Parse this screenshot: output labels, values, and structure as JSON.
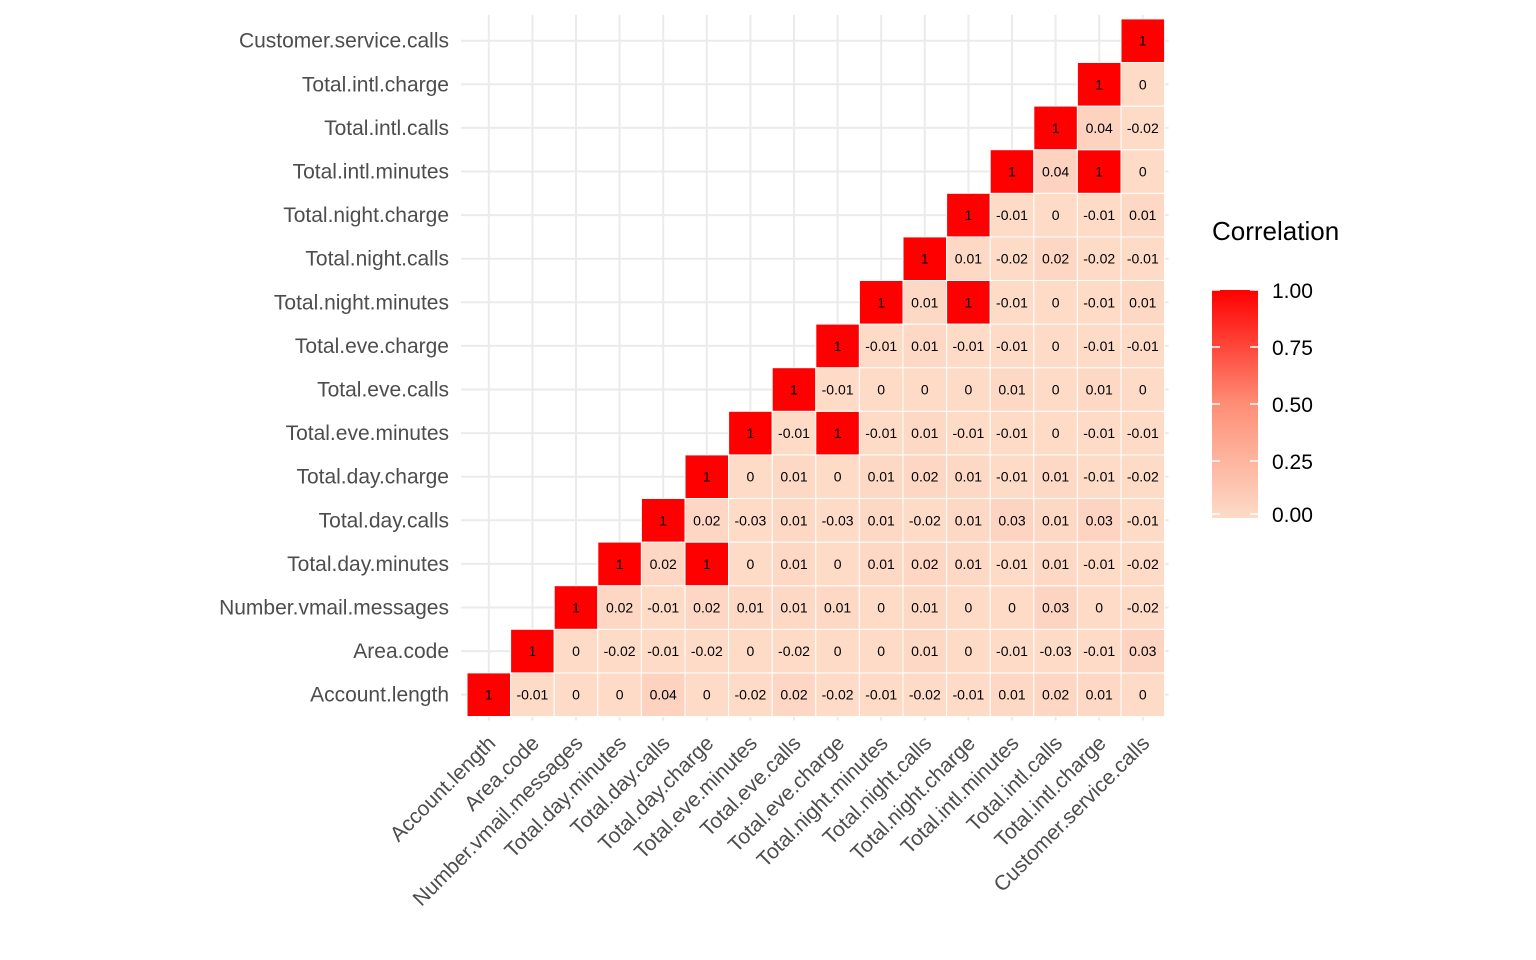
{
  "chart_data": {
    "type": "heatmap",
    "variables": [
      "Account.length",
      "Area.code",
      "Number.vmail.messages",
      "Total.day.minutes",
      "Total.day.calls",
      "Total.day.charge",
      "Total.eve.minutes",
      "Total.eve.calls",
      "Total.eve.charge",
      "Total.night.minutes",
      "Total.night.calls",
      "Total.night.charge",
      "Total.intl.minutes",
      "Total.intl.calls",
      "Total.intl.charge",
      "Customer.service.calls"
    ],
    "lower_triangle_rows": [
      [
        1
      ],
      [
        -0.01,
        1
      ],
      [
        0,
        0,
        1
      ],
      [
        0,
        -0.02,
        0.02,
        1
      ],
      [
        0.04,
        -0.01,
        -0.01,
        0.02,
        1
      ],
      [
        0,
        -0.02,
        0.02,
        1,
        0.02,
        1
      ],
      [
        -0.02,
        0,
        0.01,
        0,
        -0.03,
        0,
        1
      ],
      [
        0.02,
        -0.02,
        0.01,
        0.01,
        0.01,
        0.01,
        -0.01,
        1
      ],
      [
        -0.02,
        0,
        0.01,
        0,
        -0.03,
        0,
        1,
        -0.01,
        1
      ],
      [
        -0.01,
        0,
        0,
        0.01,
        0.01,
        0.01,
        -0.01,
        0,
        -0.01,
        1
      ],
      [
        -0.02,
        0.01,
        0.01,
        0.02,
        -0.02,
        0.02,
        0.01,
        0,
        0.01,
        0.01,
        1
      ],
      [
        -0.01,
        0,
        0,
        0.01,
        0.01,
        0.01,
        -0.01,
        0,
        -0.01,
        1,
        0.01,
        1
      ],
      [
        0.01,
        -0.01,
        0,
        -0.01,
        0.03,
        -0.01,
        -0.01,
        0.01,
        -0.01,
        -0.01,
        -0.02,
        -0.01,
        1
      ],
      [
        0.02,
        -0.03,
        0.03,
        0.01,
        0.01,
        0.01,
        0,
        0,
        0,
        0,
        0.02,
        0,
        0.04,
        1
      ],
      [
        0.01,
        -0.01,
        0,
        -0.01,
        0.03,
        -0.01,
        -0.01,
        0.01,
        -0.01,
        -0.01,
        -0.02,
        -0.01,
        1,
        0.04,
        1
      ],
      [
        0,
        0.03,
        -0.02,
        -0.02,
        -0.01,
        -0.02,
        -0.01,
        0,
        -0.01,
        0.01,
        -0.01,
        0.01,
        0,
        -0.02,
        0,
        1
      ]
    ],
    "legend": {
      "title": "Correlation",
      "ticks": [
        "1.00",
        "0.75",
        "0.50",
        "0.25",
        "0.00"
      ],
      "range": [
        0,
        1
      ],
      "placement": "right"
    },
    "colors": {
      "low": "#fddbc7",
      "high": "#ff0000",
      "grid": "#ebebeb"
    },
    "grid": true
  }
}
